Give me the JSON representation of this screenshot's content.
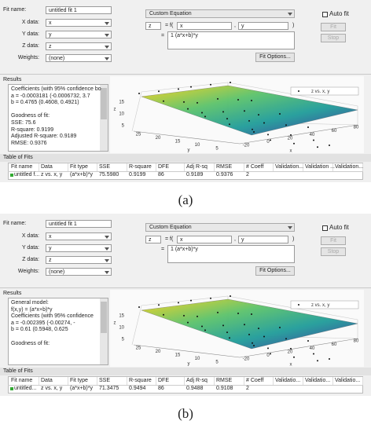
{
  "panels": [
    {
      "caption": "(a)",
      "fit_name_label": "Fit name:",
      "fit_name": "untitled fit 1",
      "fields": [
        {
          "label": "X data:",
          "value": "x"
        },
        {
          "label": "Y data:",
          "value": "y"
        },
        {
          "label": "Z data:",
          "value": "z"
        },
        {
          "label": "Weights:",
          "value": "(none)"
        }
      ],
      "equation_type": "Custom Equation",
      "output_var": "z",
      "f_open": "= f(",
      "input1": "x",
      "comma": ",",
      "input2": "y",
      "f_close": ")",
      "eq_sign": "=",
      "equation": "1 (a*x+b)*y",
      "fit_options": "Fit Options...",
      "auto_fit": "Auto fit",
      "fit_button": "Fit",
      "stop_button": "Stop",
      "results_title": "Results",
      "results_lines": [
        "Coefficients (with 95% confidence bo",
        "a = -0.0003181 (-0.0006732, 3.7",
        "b = 0.4765 (0.4608, 0.4921)",
        "",
        "Goodness of fit:",
        "SSE: 75.6",
        "R-square: 0.9199",
        "Adjusted R-square: 0.9189",
        "RMSE: 0.9376"
      ],
      "plot": {
        "legend": "z vs. x, y",
        "z_label": "z",
        "y_label": "y",
        "x_label": "x",
        "z_ticks": [
          5,
          10,
          15
        ],
        "y_ticks": [
          25,
          20,
          15,
          10,
          5
        ],
        "x_ticks": [
          -20,
          0,
          20,
          40,
          60,
          80
        ]
      },
      "table_title": "Table of Fits",
      "table": {
        "headers": [
          "Fit name",
          "Data",
          "Fit type",
          "SSE",
          "R-square",
          "DFE",
          "Adj R-sq",
          "RMSE",
          "# Coeff",
          "Validation...",
          "Validation ...",
          "Validation..."
        ],
        "row": [
          "untitled f...",
          "z vs. x, y",
          "(a*x+b)*y",
          "75.5980",
          "0.9199",
          "86",
          "0.9189",
          "0.9376",
          "2"
        ]
      }
    },
    {
      "caption": "(b)",
      "fit_name_label": "Fit name:",
      "fit_name": "untitled fit 1",
      "fields": [
        {
          "label": "X data:",
          "value": "x"
        },
        {
          "label": "Y data:",
          "value": "y"
        },
        {
          "label": "Z data:",
          "value": "z"
        },
        {
          "label": "Weights:",
          "value": "(none)"
        }
      ],
      "equation_type": "Custom Equation",
      "output_var": "z",
      "f_open": "= f(",
      "input1": "x",
      "comma": ",",
      "input2": "y",
      "f_close": ")",
      "eq_sign": "=",
      "equation": "1 (a*x+b)*y",
      "fit_options": "Fit Options...",
      "auto_fit": "Auto fit",
      "fit_button": "Fit",
      "stop_button": "Stop",
      "results_title": "Results",
      "results_lines": [
        "General model:",
        "f(x,y) = (a*x+b)*y",
        "Coefficients (with 95% confidence",
        "a = -0.002395 (-0.00274, -",
        "b = 0.61 (0.5948, 0.625",
        "",
        "Goodness of fit:"
      ],
      "plot": {
        "legend": "z vs. x, y",
        "z_label": "z",
        "y_label": "y",
        "x_label": "x",
        "z_ticks": [
          5,
          10,
          15
        ],
        "y_ticks": [
          25,
          20,
          15,
          10,
          5
        ],
        "x_ticks": [
          -20,
          0,
          20,
          40,
          60,
          80
        ]
      },
      "table_title": "Table of Fits",
      "table": {
        "headers": [
          "Fit name",
          "Data",
          "Fit type",
          "SSE",
          "R-square",
          "DFE",
          "Adj R-sq",
          "RMSE",
          "# Coeff",
          "Validatio...",
          "Validatio...",
          "Validatio..."
        ],
        "row": [
          "untitled...",
          "z vs. x, y",
          "(a*x+b)*y",
          "71.3475",
          "0.9494",
          "86",
          "0.9488",
          "0.9108",
          "2"
        ]
      }
    }
  ]
}
